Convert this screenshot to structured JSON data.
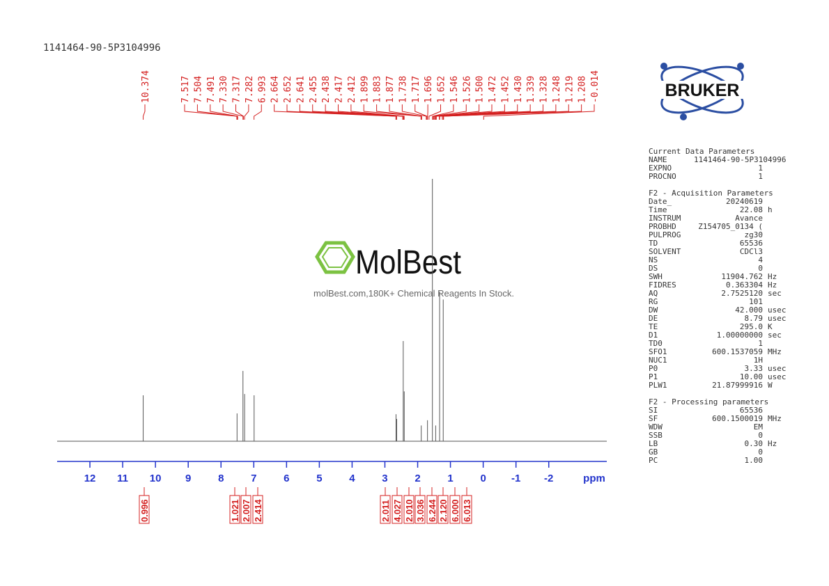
{
  "sample_id": "1141464-90-5P3104996",
  "logo_text": "BRUKER",
  "watermark": {
    "brand": "MolBest",
    "tagline": "molBest.com,180K+ Chemical Reagents In Stock."
  },
  "chart_data": {
    "type": "spectrum",
    "x_label": "ppm",
    "xlim": [
      13,
      -3.77
    ],
    "ylim": [
      0,
      100
    ],
    "xticks": [
      12,
      11,
      10,
      9,
      8,
      7,
      6,
      5,
      4,
      3,
      2,
      1,
      0,
      -1,
      -2
    ],
    "x": [
      10.374,
      7.51,
      7.33,
      7.28,
      6.99,
      2.66,
      2.64,
      2.44,
      2.41,
      1.89,
      1.7,
      1.55,
      1.45,
      1.33,
      1.22
    ],
    "y": [
      17.5,
      10.6,
      26.8,
      18,
      17.5,
      10.3,
      8.5,
      38.2,
      19,
      6,
      8,
      100,
      6,
      57,
      54
    ],
    "color": "#555555",
    "peak_labels": [
      {
        "value": 10.374,
        "label": "10.374"
      },
      {
        "value": 7.517,
        "label": "7.517"
      },
      {
        "value": 7.504,
        "label": "7.504"
      },
      {
        "value": 7.491,
        "label": "7.491"
      },
      {
        "value": 7.33,
        "label": "7.330"
      },
      {
        "value": 7.317,
        "label": "7.317"
      },
      {
        "value": 7.282,
        "label": "7.282"
      },
      {
        "value": 6.993,
        "label": "6.993"
      },
      {
        "value": 2.664,
        "label": "2.664"
      },
      {
        "value": 2.652,
        "label": "2.652"
      },
      {
        "value": 2.641,
        "label": "2.641"
      },
      {
        "value": 2.455,
        "label": "2.455"
      },
      {
        "value": 2.438,
        "label": "2.438"
      },
      {
        "value": 2.417,
        "label": "2.417"
      },
      {
        "value": 2.412,
        "label": "2.412"
      },
      {
        "value": 1.899,
        "label": "1.899"
      },
      {
        "value": 1.883,
        "label": "1.883"
      },
      {
        "value": 1.877,
        "label": "1.877"
      },
      {
        "value": 1.738,
        "label": "1.738"
      },
      {
        "value": 1.717,
        "label": "1.717"
      },
      {
        "value": 1.696,
        "label": "1.696"
      },
      {
        "value": 1.652,
        "label": "1.652"
      },
      {
        "value": 1.546,
        "label": "1.546"
      },
      {
        "value": 1.526,
        "label": "1.526"
      },
      {
        "value": 1.5,
        "label": "1.500"
      },
      {
        "value": 1.472,
        "label": "1.472"
      },
      {
        "value": 1.452,
        "label": "1.452"
      },
      {
        "value": 1.43,
        "label": "1.430"
      },
      {
        "value": 1.339,
        "label": "1.339"
      },
      {
        "value": 1.328,
        "label": "1.328"
      },
      {
        "value": 1.248,
        "label": "1.248"
      },
      {
        "value": 1.219,
        "label": "1.219"
      },
      {
        "value": 1.208,
        "label": "1.208"
      },
      {
        "value": -0.014,
        "label": "-0.014"
      }
    ],
    "integrals": [
      0.996,
      1.021,
      2.007,
      2.414,
      2.011,
      4.027,
      {
        "value": 2.01,
        "label": "2.010"
      },
      3.036,
      6.244,
      {
        "value": 2.12,
        "label": "2.120"
      },
      {
        "value": 6,
        "label": "6.000"
      },
      6.013
    ]
  },
  "parameters": [
    {
      "title": "Current Data Parameters",
      "rows": [
        [
          "NAME",
          "1141464-90-5P3104996"
        ],
        [
          "EXPNO",
          "1"
        ],
        [
          "PROCNO",
          "1"
        ]
      ]
    },
    {
      "title": "F2 - Acquisition Parameters",
      "rows": [
        [
          "Date_",
          "20240619"
        ],
        [
          "Time",
          "22.08",
          "h"
        ],
        [
          "INSTRUM",
          "Avance"
        ],
        [
          "PROBHD",
          "Z154705_0134 ("
        ],
        [
          "PULPROG",
          "zg30"
        ],
        [
          "TD",
          "65536"
        ],
        [
          "SOLVENT",
          "CDCl3"
        ],
        [
          "NS",
          "4"
        ],
        [
          "DS",
          "0"
        ],
        [
          "SWH",
          "11904.762",
          "Hz"
        ],
        [
          "FIDRES",
          "0.363304",
          "Hz"
        ],
        [
          "AQ",
          "2.7525120",
          "sec"
        ],
        [
          "RG",
          "101"
        ],
        [
          "DW",
          "42.000",
          "usec"
        ],
        [
          "DE",
          "8.79",
          "usec"
        ],
        [
          "TE",
          "295.0",
          "K"
        ],
        [
          "D1",
          "1.00000000",
          "sec"
        ],
        [
          "TD0",
          "1"
        ],
        [
          "SFO1",
          "600.1537059",
          "MHz"
        ],
        [
          "NUC1",
          "1H"
        ],
        [
          "P0",
          "3.33",
          "usec"
        ],
        [
          "P1",
          "10.00",
          "usec"
        ],
        [
          "PLW1",
          "21.87999916",
          "W"
        ]
      ]
    },
    {
      "title": "F2 - Processing parameters",
      "rows": [
        [
          "SI",
          "65536"
        ],
        [
          "SF",
          "600.1500019",
          "MHz"
        ],
        [
          "WDW",
          "EM"
        ],
        [
          "SSB",
          "0"
        ],
        [
          "LB",
          "0.30",
          "Hz"
        ],
        [
          "GB",
          "0"
        ],
        [
          "PC",
          "1.00"
        ]
      ]
    }
  ]
}
